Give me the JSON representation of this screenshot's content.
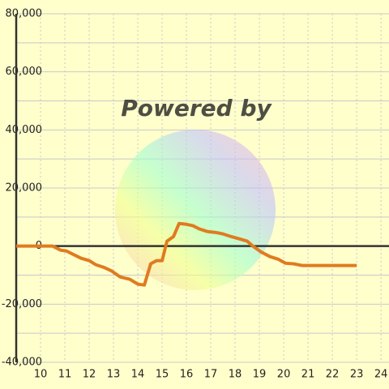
{
  "chart_data": {
    "type": "line",
    "watermark": "Powered by",
    "x": [
      9.0,
      10.5,
      10.83,
      11.07,
      11.33,
      11.67,
      12.0,
      12.27,
      12.6,
      12.93,
      13.27,
      13.67,
      14.0,
      14.27,
      14.53,
      14.77,
      15.0,
      15.2,
      15.47,
      15.7,
      16.0,
      16.27,
      16.53,
      16.87,
      17.2,
      17.5,
      17.83,
      18.17,
      18.5,
      18.73,
      19.07,
      19.43,
      19.77,
      20.07,
      20.4,
      20.77,
      23.0
    ],
    "series": [
      {
        "color": "#e07b20",
        "values": [
          0,
          0,
          -1400,
          -1700,
          -2800,
          -4200,
          -5000,
          -6400,
          -7300,
          -8600,
          -10600,
          -11400,
          -13100,
          -13400,
          -6100,
          -5000,
          -5000,
          1700,
          3300,
          7800,
          7500,
          7000,
          5900,
          5000,
          4700,
          4200,
          3300,
          2500,
          1700,
          0,
          -2000,
          -3600,
          -4500,
          -5900,
          -6100,
          -6700,
          -6700
        ]
      }
    ],
    "xlim": [
      9,
      24.33
    ],
    "xticks": [
      10,
      11,
      12,
      13,
      14,
      15,
      16,
      17,
      18,
      19,
      20,
      21,
      22,
      23,
      24
    ],
    "ylim": [
      -40000,
      80000
    ],
    "yticks": [
      {
        "value": 80000,
        "label": "80,000"
      },
      {
        "value": 60000,
        "label": "60,000"
      },
      {
        "value": 40000,
        "label": "40,000"
      },
      {
        "value": 20000,
        "label": "20,000"
      },
      0,
      {
        "value": -20000,
        "label": "-20,000"
      },
      {
        "value": -40000,
        "label": "-40,000"
      }
    ],
    "minor_gridlines": [
      70000,
      50000,
      30000,
      10000,
      -10000,
      -30000
    ],
    "grid": true
  }
}
